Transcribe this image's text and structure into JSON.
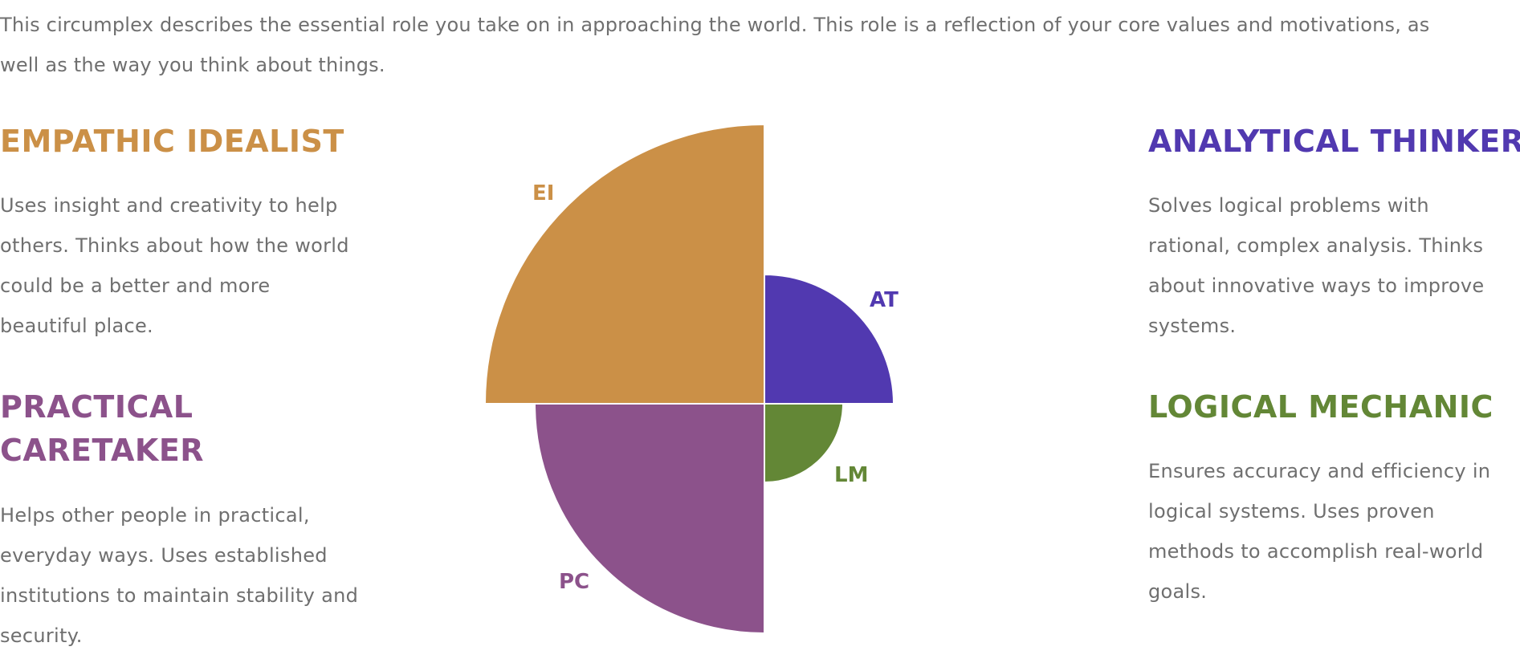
{
  "intro": {
    "lines": [
      "This circumplex describes the essential role you take on in approaching the world. This role is a reflection of your core values and motivations, as",
      "well as the way you think about things."
    ]
  },
  "colors": {
    "empathic_idealist": "#cb9047",
    "analytical_thinker": "#5139b0",
    "practical_caretaker": "#8c528b",
    "logical_mechanic": "#638736",
    "body_text": "#6f6f6f"
  },
  "roles": {
    "empathic_idealist": {
      "title": "EMPATHIC IDEALIST",
      "abbr": "EI",
      "description_lines": [
        "Uses insight and creativity to help",
        "others. Thinks about how the world",
        "could be a better and more",
        "beautiful place."
      ]
    },
    "practical_caretaker": {
      "title_lines": [
        "PRACTICAL",
        "CARETAKER"
      ],
      "abbr": "PC",
      "description_lines": [
        "Helps other people in practical,",
        "everyday ways. Uses established",
        "institutions to maintain stability and",
        "security."
      ]
    },
    "analytical_thinker": {
      "title": "ANALYTICAL THINKER",
      "abbr": "AT",
      "description_lines": [
        "Solves logical problems with",
        "rational, complex analysis. Thinks",
        "about innovative ways to improve",
        "systems."
      ]
    },
    "logical_mechanic": {
      "title": "LOGICAL MECHANIC",
      "abbr": "LM",
      "description_lines": [
        "Ensures accuracy and efficiency in",
        "logical systems. Uses proven",
        "methods to accomplish real-world",
        "goals."
      ]
    }
  }
}
